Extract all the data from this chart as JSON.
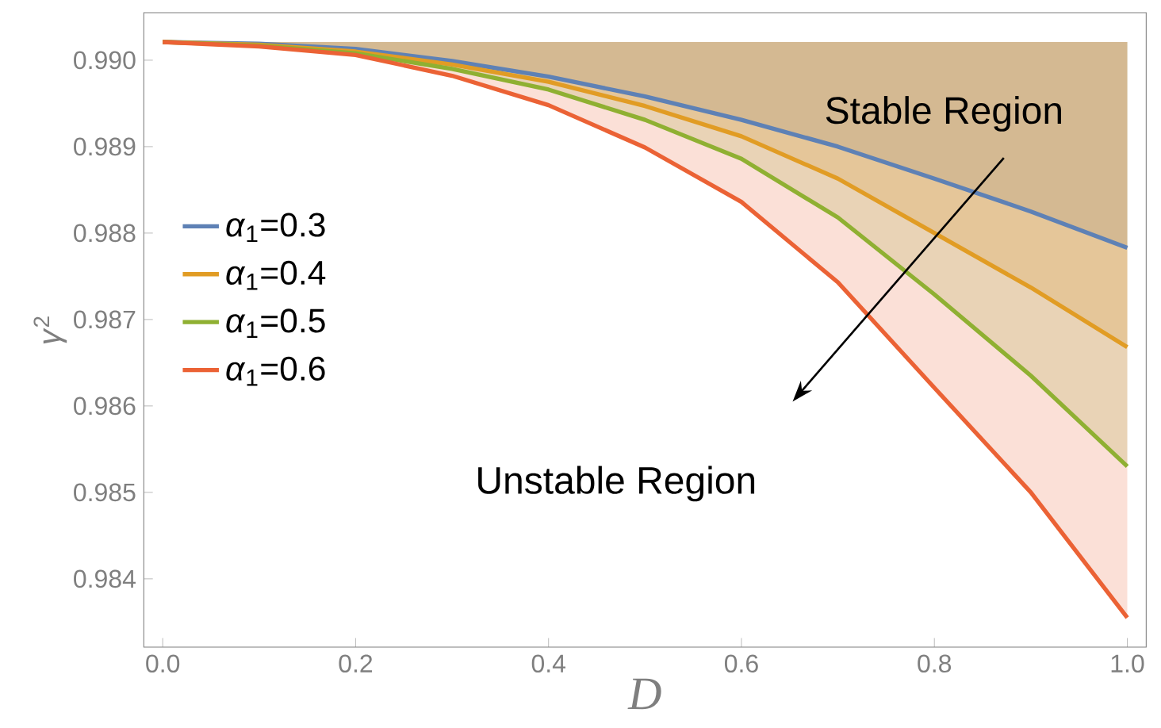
{
  "chart_data": {
    "type": "line",
    "xlabel": "D",
    "ylabel": "*γ*$^{2}$",
    "x": [
      0,
      0.1,
      0.2,
      0.3,
      0.4,
      0.5,
      0.6,
      0.7,
      0.8,
      0.9,
      1.0
    ],
    "series": [
      {
        "name": "*α*$_{1}$=0.3",
        "color": "#5e81b5",
        "values": [
          0.99021,
          0.99019,
          0.99013,
          0.98999,
          0.98981,
          0.98958,
          0.98931,
          0.989,
          0.98863,
          0.98825,
          0.98783
        ],
        "lower": [
          0.99021,
          0.99019,
          0.99013,
          0.98999,
          0.98981,
          0.98958,
          0.98931,
          0.989,
          0.98863,
          0.98825,
          0.98783
        ],
        "upper": [
          0.99021,
          0.99021,
          0.99021,
          0.99021,
          0.99021,
          0.99021,
          0.99021,
          0.99021,
          0.99021,
          0.99021,
          0.99021
        ]
      },
      {
        "name": "*α*$_{1}$=0.4",
        "color": "#e19c24",
        "values": [
          0.99021,
          0.99018,
          0.9901,
          0.98995,
          0.98975,
          0.98947,
          0.98912,
          0.98863,
          0.988,
          0.98737,
          0.98668
        ],
        "lower": [
          0.99021,
          0.99018,
          0.9901,
          0.98995,
          0.98975,
          0.98947,
          0.98912,
          0.98863,
          0.988,
          0.98737,
          0.98668
        ],
        "upper": [
          0.99021,
          0.99021,
          0.99021,
          0.99021,
          0.99021,
          0.99021,
          0.99021,
          0.99021,
          0.99021,
          0.99021,
          0.99021
        ]
      },
      {
        "name": "*α*$_{1}$=0.5",
        "color": "#8fb032",
        "values": [
          0.99021,
          0.99017,
          0.99008,
          0.9899,
          0.98966,
          0.98931,
          0.98886,
          0.98818,
          0.98729,
          0.98635,
          0.9853
        ],
        "lower": [
          0.99021,
          0.99017,
          0.99008,
          0.9899,
          0.98966,
          0.98931,
          0.98886,
          0.98818,
          0.98729,
          0.98635,
          0.9853
        ],
        "upper": [
          0.99021,
          0.99021,
          0.99021,
          0.99021,
          0.99021,
          0.99021,
          0.99021,
          0.99021,
          0.99021,
          0.99021,
          0.99021
        ]
      },
      {
        "name": "*α*$_{1}$=0.6",
        "color": "#eb6235",
        "values": [
          0.99021,
          0.99016,
          0.99006,
          0.98982,
          0.98948,
          0.98899,
          0.98836,
          0.98743,
          0.98621,
          0.985,
          0.98355
        ],
        "lower": [
          0.99021,
          0.99016,
          0.99006,
          0.98982,
          0.98948,
          0.98899,
          0.98836,
          0.98743,
          0.98621,
          0.985,
          0.98355
        ],
        "upper": [
          0.99021,
          0.99021,
          0.99021,
          0.99021,
          0.99021,
          0.99021,
          0.99021,
          0.99021,
          0.99021,
          0.99021,
          0.99021
        ]
      }
    ],
    "annotations": [
      "Stable Region",
      "Unstable Region"
    ],
    "xlim": [
      -0.0196,
      1.0196
    ],
    "ylim": [
      0.98321,
      0.99055
    ],
    "xticks": [
      {
        "value": 0,
        "label": "0.0"
      },
      0.2,
      0.4,
      0.6,
      0.8,
      {
        "value": 1.0,
        "label": "1.0"
      }
    ],
    "yticks": [
      0.984,
      0.985,
      0.986,
      0.987,
      0.988,
      0.989,
      {
        "value": 0.99,
        "label": "0.990"
      }
    ],
    "grid": false,
    "legend": "left",
    "marker": "none",
    "line_style": "solid"
  }
}
